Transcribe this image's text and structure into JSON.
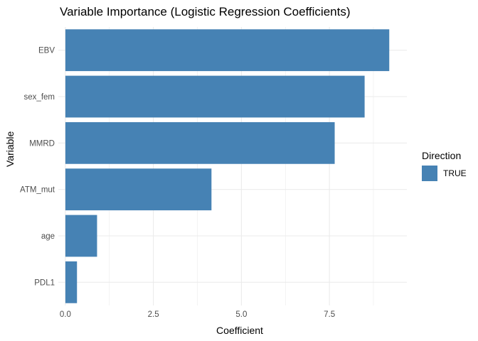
{
  "chart_data": {
    "type": "bar",
    "orientation": "horizontal",
    "title": "Variable Importance (Logistic Regression Coefficients)",
    "xlabel": "Coefficient",
    "ylabel": "Variable",
    "categories": [
      "EBV",
      "sex_fem",
      "MMRD",
      "ATM_mut",
      "age",
      "PDL1"
    ],
    "values": [
      9.2,
      8.5,
      7.65,
      4.15,
      0.9,
      0.33
    ],
    "xlim": [
      -0.2,
      9.7
    ],
    "xticks": [
      "0.0",
      "2.5",
      "5.0",
      "7.5"
    ],
    "xtick_values": [
      0,
      2.5,
      5,
      7.5
    ],
    "minor_xticks": [
      1.25,
      3.75,
      6.25,
      8.75
    ],
    "grid": true,
    "bar_color": "#4682B4",
    "grid_color": "#EBEBEB",
    "legend": {
      "title": "Direction",
      "position": "right",
      "entries": [
        {
          "label": "TRUE",
          "color": "#4682B4"
        }
      ]
    }
  }
}
